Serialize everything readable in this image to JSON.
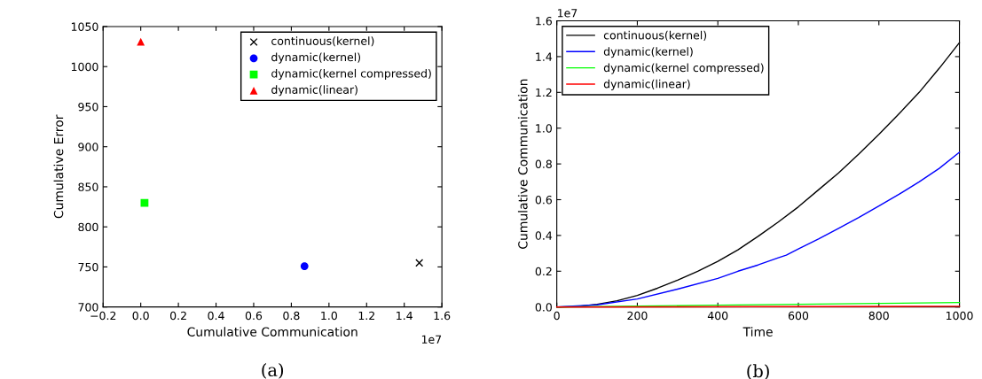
{
  "chart_data": [
    {
      "type": "scatter",
      "xlabel": "Cumulative Communication",
      "ylabel": "Cumulative Error",
      "legend": "top right",
      "grid": false,
      "xlim": [
        -0.2,
        1.6
      ],
      "xticks": [
        {
          "value": -0.2,
          "label": "−0.2"
        },
        {
          "value": 0,
          "label": "0.0"
        },
        0.2,
        0.4,
        0.6,
        0.8,
        {
          "value": 1,
          "label": "1.0"
        },
        1.2,
        1.4,
        1.6
      ],
      "ylim": [
        700,
        1050
      ],
      "yticks": [
        700,
        750,
        800,
        850,
        900,
        950,
        1000,
        1050
      ],
      "annotations": [
        "1e7",
        "(a)"
      ],
      "series": [
        {
          "name": "continuous(kernel)",
          "color": "#000000",
          "marker": "cross",
          "x": [
            1.48
          ],
          "values": [
            755
          ]
        },
        {
          "name": "dynamic(kernel)",
          "color": "#0000ff",
          "marker": "circle",
          "x": [
            0.87
          ],
          "values": [
            751
          ]
        },
        {
          "name": "dynamic(kernel compressed)",
          "color": "#00ff00",
          "marker": "square",
          "x": [
            0.02
          ],
          "values": [
            830
          ]
        },
        {
          "name": "dynamic(linear)",
          "color": "#ff0000",
          "marker": "triangle",
          "x": [
            0
          ],
          "values": [
            1031
          ]
        }
      ]
    },
    {
      "type": "line",
      "xlabel": "Time",
      "ylabel": "Cumulative Communication",
      "legend": "top left",
      "grid": false,
      "xlim": [
        0,
        1000
      ],
      "xticks": [
        0,
        200,
        400,
        600,
        800,
        1000
      ],
      "ylim": [
        0,
        1.6
      ],
      "yticks": [
        {
          "value": 0,
          "label": "0.0"
        },
        0.2,
        0.4,
        0.6,
        0.8,
        {
          "value": 1,
          "label": "1.0"
        },
        1.2,
        1.4,
        1.6
      ],
      "annotations": [
        "1e7",
        "(b)"
      ],
      "series": [
        {
          "name": "continuous(kernel)",
          "color": "#000000",
          "x": [
            0,
            50,
            100,
            150,
            200,
            250,
            300,
            350,
            400,
            450,
            500,
            550,
            600,
            650,
            700,
            750,
            800,
            850,
            900,
            950,
            1000
          ],
          "values": [
            0,
            0.003,
            0.015,
            0.035,
            0.065,
            0.105,
            0.15,
            0.2,
            0.255,
            0.32,
            0.395,
            0.475,
            0.56,
            0.655,
            0.75,
            0.855,
            0.965,
            1.08,
            1.2,
            1.335,
            1.478
          ]
        },
        {
          "name": "dynamic(kernel)",
          "color": "#0000ff",
          "x": [
            0,
            100,
            200,
            300,
            400,
            450,
            500,
            550,
            570,
            600,
            650,
            700,
            750,
            800,
            850,
            900,
            950,
            1000
          ],
          "values": [
            0,
            0.012,
            0.045,
            0.1,
            0.16,
            0.2,
            0.235,
            0.275,
            0.29,
            0.325,
            0.38,
            0.44,
            0.5,
            0.565,
            0.63,
            0.7,
            0.775,
            0.865
          ]
        },
        {
          "name": "dynamic(kernel compressed)",
          "color": "#00ff00",
          "x": [
            0,
            200,
            400,
            600,
            800,
            1000
          ],
          "values": [
            0,
            0.005,
            0.01,
            0.015,
            0.02,
            0.025
          ]
        },
        {
          "name": "dynamic(linear)",
          "color": "#ff0000",
          "x": [
            0,
            500,
            1000
          ],
          "values": [
            0,
            0.002,
            0.004
          ]
        }
      ]
    }
  ]
}
